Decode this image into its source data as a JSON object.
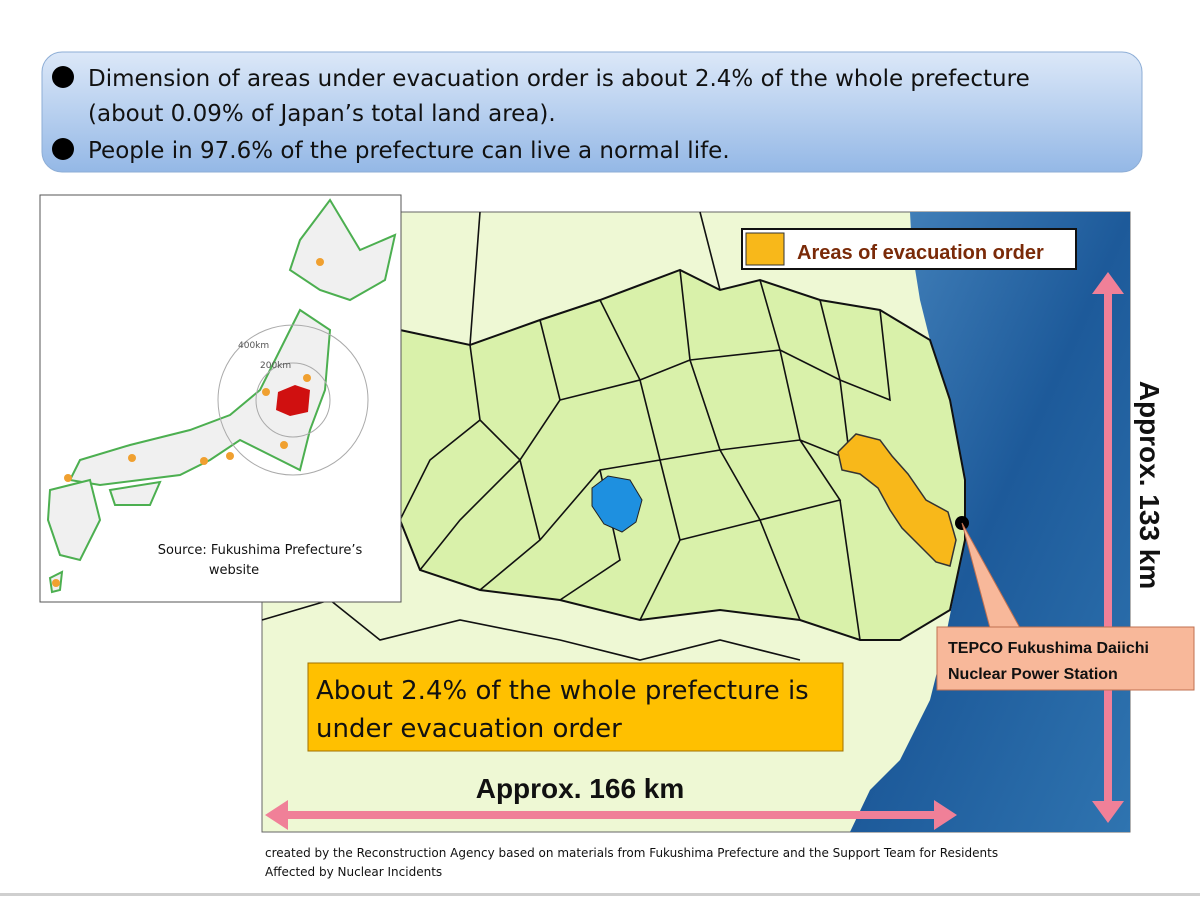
{
  "summary": {
    "bullets": [
      [
        "Dimension of areas under evacuation order is about 2.4% of the whole prefecture",
        "(about 0.09% of Japan’s total land area)."
      ],
      [
        "People in 97.6% of the prefecture can live a normal life."
      ]
    ]
  },
  "inset_map": {
    "ring_labels": [
      "400km",
      "200km"
    ],
    "source": [
      "Source: Fukushima Prefecture’s",
      "website"
    ]
  },
  "main_map": {
    "legend": "Areas of evacuation order",
    "height_label": "Approx. 133 km",
    "width_label": "Approx. 166 km",
    "callout": [
      "About 2.4% of the whole prefecture is",
      "under evacuation order"
    ],
    "plant_label": [
      "TEPCO Fukushima Daiichi",
      "Nuclear Power Station"
    ]
  },
  "footer": [
    "created by the Reconstruction Agency based on materials from Fukushima Prefecture and the Support Team for Residents",
    "Affected by Nuclear Incidents"
  ]
}
